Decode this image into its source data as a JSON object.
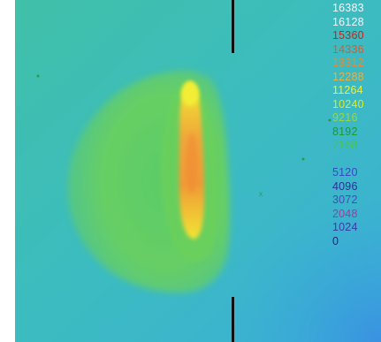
{
  "colorbar": {
    "upper": [
      {
        "label": "16383",
        "color": "#f4f8ff"
      },
      {
        "label": "16128",
        "color": "#eef6ff"
      },
      {
        "label": "15360",
        "color": "#c2261c"
      },
      {
        "label": "14336",
        "color": "#dc5a2a"
      },
      {
        "label": "13312",
        "color": "#e88a34"
      },
      {
        "label": "12288",
        "color": "#f0ae3c"
      },
      {
        "label": "11264",
        "color": "#f2ee32"
      },
      {
        "label": "10240",
        "color": "#d8ea2c"
      },
      {
        "label": "9216",
        "color": "#9ad83a"
      },
      {
        "label": "8192",
        "color": "#1e9a30"
      },
      {
        "label": "7168",
        "color": "#4cc63c"
      }
    ],
    "lower": [
      {
        "label": "5120",
        "color": "#3848c6"
      },
      {
        "label": "4096",
        "color": "#2c3096"
      },
      {
        "label": "3072",
        "color": "#4a4ab6"
      },
      {
        "label": "2048",
        "color": "#a23a9e"
      },
      {
        "label": "1024",
        "color": "#3a3aa6"
      },
      {
        "label": "0",
        "color": "#1e1e7e"
      }
    ]
  }
}
